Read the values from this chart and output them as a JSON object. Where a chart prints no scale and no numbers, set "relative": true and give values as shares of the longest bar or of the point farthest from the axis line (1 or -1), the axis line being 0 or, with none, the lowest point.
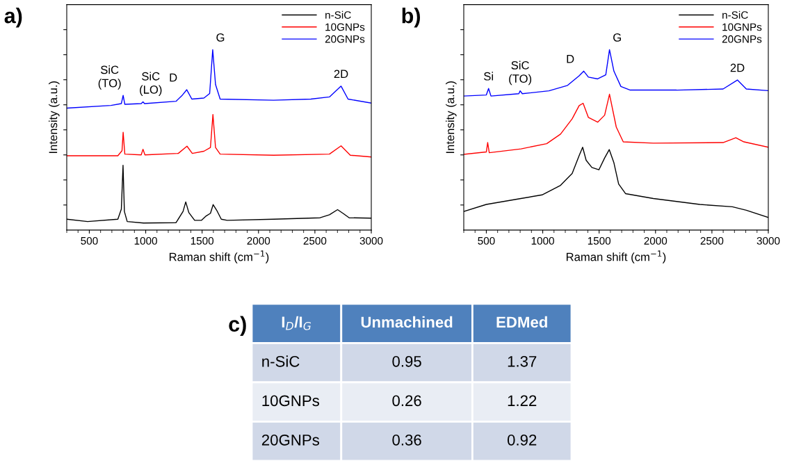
{
  "chart_data": [
    {
      "type": "line",
      "title": "a)",
      "xlabel": "Raman shift (cm$^{−1}$)",
      "ylabel": "Intensity (a.u.)",
      "relative": true,
      "tick_labels": "x",
      "legend": "top right",
      "xlim": [
        300,
        3000
      ],
      "xticks": [
        {
          "value": 300,
          "label": null
        },
        {
          "value": 400,
          "label": null
        },
        500,
        {
          "value": 600,
          "label": null
        },
        {
          "value": 700,
          "label": null
        },
        {
          "value": 800,
          "label": null
        },
        {
          "value": 900,
          "label": null
        },
        1000,
        {
          "value": 1100,
          "label": null
        },
        {
          "value": 1200,
          "label": null
        },
        {
          "value": 1300,
          "label": null
        },
        {
          "value": 1400,
          "label": null
        },
        1500,
        {
          "value": 1600,
          "label": null
        },
        {
          "value": 1700,
          "label": null
        },
        {
          "value": 1800,
          "label": null
        },
        {
          "value": 1900,
          "label": null
        },
        2000,
        {
          "value": 2100,
          "label": null
        },
        {
          "value": 2200,
          "label": null
        },
        {
          "value": 2300,
          "label": null
        },
        {
          "value": 2400,
          "label": null
        },
        2500,
        {
          "value": 2600,
          "label": null
        },
        {
          "value": 2700,
          "label": null
        },
        {
          "value": 2800,
          "label": null
        },
        {
          "value": 2900,
          "label": null
        },
        3000
      ],
      "series": [
        {
          "name": "n-SiC",
          "color": "#000000",
          "x": [
            300,
            485,
            753,
            784,
            799,
            811,
            836,
            980,
            1269,
            1331,
            1355,
            1382,
            1434,
            1495,
            1536,
            1574,
            1598,
            1629,
            1670,
            1722,
            2134,
            2546,
            2629,
            2701,
            2753,
            2804,
            3000
          ],
          "values": [
            0.06,
            0.047,
            0.06,
            0.116,
            0.359,
            0.103,
            0.047,
            0.039,
            0.041,
            0.103,
            0.156,
            0.097,
            0.054,
            0.054,
            0.078,
            0.093,
            0.141,
            0.11,
            0.06,
            0.054,
            0.06,
            0.068,
            0.085,
            0.113,
            0.091,
            0.068,
            0.066
          ]
        },
        {
          "name": "10GNPs",
          "color": "#ff0000",
          "x": [
            300,
            753,
            790,
            800,
            815,
            960,
            976,
            993,
            1289,
            1366,
            1413,
            1516,
            1574,
            1596,
            1619,
            1660,
            2134,
            2629,
            2732,
            2814,
            3000
          ],
          "values": [
            0.412,
            0.412,
            0.44,
            0.542,
            0.421,
            0.417,
            0.448,
            0.417,
            0.425,
            0.465,
            0.425,
            0.437,
            0.458,
            0.641,
            0.458,
            0.421,
            0.415,
            0.421,
            0.467,
            0.415,
            0.405
          ]
        },
        {
          "name": "20GNPs",
          "color": "#0000ff",
          "x": [
            300,
            692,
            784,
            800,
            815,
            960,
            976,
            990,
            1269,
            1321,
            1364,
            1409,
            1516,
            1567,
            1594,
            1619,
            1660,
            2134,
            2464,
            2629,
            2732,
            2794,
            3000
          ],
          "values": [
            0.676,
            0.691,
            0.701,
            0.747,
            0.697,
            0.701,
            0.711,
            0.701,
            0.714,
            0.745,
            0.778,
            0.726,
            0.732,
            0.757,
            1.0,
            0.807,
            0.726,
            0.72,
            0.726,
            0.738,
            0.798,
            0.726,
            0.704
          ]
        }
      ],
      "annotations": [
        {
          "text": "SiC\n(TO)",
          "x": 800,
          "y": 0.747
        },
        {
          "text": "SiC\n(LO)",
          "x": 976,
          "y": 0.711
        },
        {
          "text": "D",
          "x": 1364,
          "y": 0.778
        },
        {
          "text": "G",
          "x": 1594,
          "y": 1.0
        },
        {
          "text": "2D",
          "x": 2732,
          "y": 0.798
        }
      ]
    },
    {
      "type": "line",
      "title": "b)",
      "xlabel": "Raman shift (cm$^{−1}$)",
      "ylabel": "Intensity (a.u.)",
      "relative": true,
      "tick_labels": "x",
      "legend": "top right",
      "xlim": [
        300,
        3000
      ],
      "xticks": [
        {
          "value": 300,
          "label": null
        },
        {
          "value": 400,
          "label": null
        },
        500,
        {
          "value": 600,
          "label": null
        },
        {
          "value": 700,
          "label": null
        },
        {
          "value": 800,
          "label": null
        },
        {
          "value": 900,
          "label": null
        },
        1000,
        {
          "value": 1100,
          "label": null
        },
        {
          "value": 1200,
          "label": null
        },
        {
          "value": 1300,
          "label": null
        },
        {
          "value": 1400,
          "label": null
        },
        1500,
        {
          "value": 1600,
          "label": null
        },
        {
          "value": 1700,
          "label": null
        },
        {
          "value": 1800,
          "label": null
        },
        {
          "value": 1900,
          "label": null
        },
        2000,
        {
          "value": 2100,
          "label": null
        },
        {
          "value": 2200,
          "label": null
        },
        {
          "value": 2300,
          "label": null
        },
        {
          "value": 2400,
          "label": null
        },
        2500,
        {
          "value": 2600,
          "label": null
        },
        {
          "value": 2700,
          "label": null
        },
        {
          "value": 2800,
          "label": null
        },
        {
          "value": 2900,
          "label": null
        },
        3000
      ],
      "series": [
        {
          "name": "n-SiC",
          "color": "#000000",
          "x": [
            300,
            500,
            788,
            994,
            1158,
            1261,
            1323,
            1354,
            1385,
            1436,
            1498,
            1549,
            1590,
            1631,
            1673,
            1734,
            1981,
            2393,
            2681,
            2805,
            3000
          ],
          "values": [
            0.103,
            0.142,
            0.173,
            0.195,
            0.248,
            0.314,
            0.413,
            0.459,
            0.387,
            0.347,
            0.334,
            0.4,
            0.446,
            0.373,
            0.255,
            0.202,
            0.175,
            0.142,
            0.129,
            0.11,
            0.07
          ]
        },
        {
          "name": "10GNPs",
          "color": "#ff0000",
          "x": [
            300,
            500,
            512,
            526,
            808,
            1035,
            1158,
            1261,
            1323,
            1358,
            1405,
            1487,
            1549,
            1592,
            1652,
            1714,
            1981,
            2599,
            2712,
            2784,
            3000
          ],
          "values": [
            0.42,
            0.433,
            0.485,
            0.429,
            0.45,
            0.479,
            0.532,
            0.617,
            0.69,
            0.703,
            0.624,
            0.598,
            0.637,
            0.753,
            0.571,
            0.489,
            0.482,
            0.485,
            0.512,
            0.489,
            0.459
          ]
        },
        {
          "name": "20GNPs",
          "color": "#0000ff",
          "x": [
            300,
            500,
            520,
            541,
            788,
            800,
            819,
            1055,
            1220,
            1323,
            1364,
            1405,
            1487,
            1559,
            1592,
            1631,
            1693,
            1776,
            2187,
            2599,
            2726,
            2805,
            3000
          ],
          "values": [
            0.743,
            0.749,
            0.785,
            0.743,
            0.756,
            0.772,
            0.756,
            0.772,
            0.802,
            0.855,
            0.881,
            0.848,
            0.838,
            0.861,
            1.0,
            0.881,
            0.796,
            0.776,
            0.776,
            0.782,
            0.832,
            0.782,
            0.773
          ]
        }
      ],
      "annotations": [
        {
          "text": "Si",
          "x": 520,
          "y": 0.785
        },
        {
          "text": "SiC\n(TO)",
          "x": 800,
          "y": 0.772
        },
        {
          "text": "D",
          "x": 1364,
          "y": 0.881
        },
        {
          "text": "G",
          "x": 1592,
          "y": 1.0
        },
        {
          "text": "2D",
          "x": 2726,
          "y": 0.832
        }
      ]
    },
    {
      "type": "other",
      "title": "c)",
      "categories": [
        "I$_{D}$/I$_{G}$",
        "Unmachined",
        "EDMed"
      ],
      "y_categories": [
        "n-SiC",
        "10GNPs",
        "20GNPs"
      ],
      "cell_labels": [
        [
          "0.95",
          "1.37"
        ],
        [
          "0.26",
          "1.22"
        ],
        [
          "0.36",
          "0.92"
        ]
      ]
    }
  ]
}
